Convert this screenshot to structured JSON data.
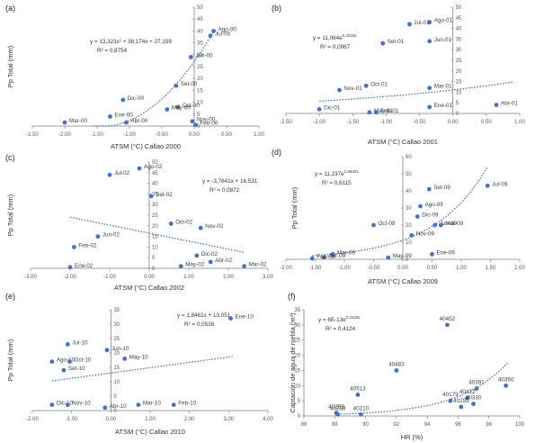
{
  "colors": {
    "point": "#4472c4",
    "trend": "#4472c4",
    "axis": "#7f7f7f"
  },
  "chart_data": [
    {
      "id": "a",
      "panel_label": "(a)",
      "type": "scatter",
      "xlabel": "ATSM (°C) Callao 2000",
      "ylabel": "Pp Total (mm)",
      "xlim": [
        -2.5,
        1.0
      ],
      "ylim": [
        0,
        50
      ],
      "xticks": [
        "-2.50",
        "-2.00",
        "-1.50",
        "-1.00",
        "-0.50",
        "0.00",
        "0.50",
        "1.00"
      ],
      "yticks": [
        "0",
        "5",
        "10",
        "15",
        "20",
        "25",
        "30",
        "35",
        "40",
        "45",
        "50"
      ],
      "points": [
        {
          "x": 0.3,
          "y": 40,
          "label": "Ago-00"
        },
        {
          "x": 0.25,
          "y": 38,
          "label": "Jul-00"
        },
        {
          "x": -0.05,
          "y": 29,
          "label": "Jun-00"
        },
        {
          "x": -0.28,
          "y": 17,
          "label": "Set-00"
        },
        {
          "x": -1.1,
          "y": 11,
          "label": "Dic-00"
        },
        {
          "x": -0.25,
          "y": 8,
          "label": "Oct-00"
        },
        {
          "x": -0.42,
          "y": 7,
          "label": "May-00"
        },
        {
          "x": -1.3,
          "y": 4,
          "label": "Ene-00"
        },
        {
          "x": -1.05,
          "y": 1.5,
          "label": "Abr-00"
        },
        {
          "x": -2.0,
          "y": 1.5,
          "label": "Mar-00"
        },
        {
          "x": -0.03,
          "y": 2,
          "label": "Nov-00"
        },
        {
          "x": 0.02,
          "y": 0.5,
          "label": "Feb-00"
        }
      ],
      "trend": {
        "kind": "poly2",
        "coef": [
          13.323,
          38.174,
          27.159
        ],
        "xrange": [
          -1.55,
          0.3
        ]
      },
      "equation": "y = 13,323x² + 38,174x + 27,159",
      "r2": "R² = 0,8754"
    },
    {
      "id": "b",
      "panel_label": "(b)",
      "type": "scatter",
      "xlabel": "ATSM (°C) Callao 2001",
      "ylabel": "",
      "xlim": [
        -2.5,
        1.0
      ],
      "ylim": [
        0,
        50
      ],
      "xticks": [
        "-2.50",
        "-2.00",
        "-1.50",
        "-1.00",
        "-0.50",
        "0.00",
        "0.50",
        "1.00"
      ],
      "yticks": [
        "0",
        "5",
        "10",
        "15",
        "20",
        "25",
        "30",
        "35",
        "40",
        "45",
        "50"
      ],
      "points": [
        {
          "x": -0.35,
          "y": 43,
          "label": "Ago-01"
        },
        {
          "x": -0.65,
          "y": 42,
          "label": "Jul-01"
        },
        {
          "x": -0.35,
          "y": 34,
          "label": "Jun-01"
        },
        {
          "x": -1.05,
          "y": 33,
          "label": "Set-01"
        },
        {
          "x": -1.3,
          "y": 13,
          "label": "Oct-01"
        },
        {
          "x": -1.7,
          "y": 11,
          "label": "Nov-01"
        },
        {
          "x": -0.35,
          "y": 12,
          "label": "Mar-01"
        },
        {
          "x": -0.35,
          "y": 3,
          "label": "Ene-01"
        },
        {
          "x": 0.65,
          "y": 4,
          "label": "Abr-01"
        },
        {
          "x": -2.0,
          "y": 2,
          "label": "Dic-01"
        },
        {
          "x": -1.25,
          "y": 0.5,
          "label": "May-01"
        },
        {
          "x": -1.15,
          "y": 0.5,
          "label": "Feb-01"
        }
      ],
      "trend": {
        "kind": "exp",
        "a": 11.064,
        "b": 0.3233,
        "xrange": [
          -2.0,
          0.9
        ]
      },
      "equation": "y = 11,064e",
      "eq_sup": "0,3233x",
      "r2": "R² = 0,0967"
    },
    {
      "id": "c",
      "panel_label": "(c)",
      "type": "scatter",
      "xlabel": "ATSM (°C) Callao 2002",
      "ylabel": "Pp Total (mm)",
      "xlim": [
        -3.0,
        3.0
      ],
      "ylim": [
        0,
        50
      ],
      "xticks": [
        "-3.00",
        "-2.00",
        "-1.00",
        "0.00",
        "1.00",
        "2.00",
        "3.00"
      ],
      "yticks": [
        "0",
        "5",
        "10",
        "15",
        "20",
        "25",
        "30",
        "35",
        "40",
        "45",
        "50"
      ],
      "points": [
        {
          "x": -0.25,
          "y": 47,
          "label": "Ago-02"
        },
        {
          "x": -1.0,
          "y": 44,
          "label": "Jul-02"
        },
        {
          "x": 0.05,
          "y": 34,
          "label": "Set-02"
        },
        {
          "x": 0.55,
          "y": 21,
          "label": "Oct-02"
        },
        {
          "x": 1.3,
          "y": 19,
          "label": "Nov-02"
        },
        {
          "x": -1.3,
          "y": 15,
          "label": "Jun-02"
        },
        {
          "x": -1.9,
          "y": 10,
          "label": "Feb-02"
        },
        {
          "x": 1.2,
          "y": 6,
          "label": "Dic-02"
        },
        {
          "x": 1.55,
          "y": 3,
          "label": "Abr-02"
        },
        {
          "x": 0.8,
          "y": 1,
          "label": "May-02"
        },
        {
          "x": 2.4,
          "y": 1,
          "label": "Mar-02"
        },
        {
          "x": -2.0,
          "y": 0.5,
          "label": "Ene-02"
        }
      ],
      "trend": {
        "kind": "linear",
        "m": -3.7641,
        "c": 16.531,
        "xrange": [
          -2.0,
          2.4
        ]
      },
      "equation": "y = -3,7641x + 16,531",
      "r2": "R² = 0,0872"
    },
    {
      "id": "d",
      "panel_label": "(d)",
      "type": "scatter",
      "xlabel": "ATSM (°C) Callao 2009",
      "ylabel": "Pp Total (mm)",
      "xlim": [
        -2.0,
        2.0
      ],
      "ylim": [
        0,
        60
      ],
      "xticks": [
        "-2.00",
        "-1.50",
        "-1.00",
        "-0.50",
        "0.00",
        "0.50",
        "1.00",
        "1.50",
        "2.00"
      ],
      "yticks": [
        "0",
        "10",
        "20",
        "30",
        "40",
        "50",
        "60"
      ],
      "points": [
        {
          "x": 1.45,
          "y": 43,
          "label": "Jul-09"
        },
        {
          "x": 0.45,
          "y": 41,
          "label": "Set-09"
        },
        {
          "x": 0.3,
          "y": 31,
          "label": "Ago-09"
        },
        {
          "x": 0.25,
          "y": 25,
          "label": "Dic-09"
        },
        {
          "x": -0.5,
          "y": 20,
          "label": "Oct-09"
        },
        {
          "x": 0.55,
          "y": 20,
          "label": "Jun-09"
        },
        {
          "x": 0.65,
          "y": 20,
          "label": "Mar-09"
        },
        {
          "x": 0.15,
          "y": 14,
          "label": "Nov-09"
        },
        {
          "x": -1.2,
          "y": 3,
          "label": "Mar-09"
        },
        {
          "x": 0.5,
          "y": 3,
          "label": "Ene-09"
        },
        {
          "x": -0.25,
          "y": 1,
          "label": "May-09"
        },
        {
          "x": -1.35,
          "y": 1,
          "label": "Abr-09"
        },
        {
          "x": -1.55,
          "y": 0.5,
          "label": "Feb-09"
        }
      ],
      "trend": {
        "kind": "exp",
        "a": 11.237,
        "b": 1.0842,
        "xrange": [
          -1.55,
          1.45
        ]
      },
      "equation": "y = 11,237e",
      "eq_sup": "1,0842x",
      "r2": "R² = 0,6115"
    },
    {
      "id": "e",
      "panel_label": "(e)",
      "type": "scatter",
      "xlabel": "ATSM (°C) Callao 2010",
      "ylabel": "Pp Total (mm)",
      "xlim": [
        -2.0,
        4.0
      ],
      "ylim": [
        0,
        35
      ],
      "xticks": [
        "-2.00",
        "-1.00",
        "0.00",
        "1.00",
        "2.00",
        "3.00",
        "4.00"
      ],
      "yticks": [
        "0",
        "5",
        "10",
        "15",
        "20",
        "25",
        "30",
        "35"
      ],
      "points": [
        {
          "x": 3.05,
          "y": 32,
          "label": "Ene-10"
        },
        {
          "x": -1.1,
          "y": 23,
          "label": "Jul-10"
        },
        {
          "x": -0.1,
          "y": 21,
          "label": "Jun-10"
        },
        {
          "x": 0.35,
          "y": 18,
          "label": "May-10"
        },
        {
          "x": -1.5,
          "y": 17,
          "label": "Ago-10"
        },
        {
          "x": -1.05,
          "y": 17,
          "label": "Oct-10"
        },
        {
          "x": -1.2,
          "y": 14,
          "label": "Set-10"
        },
        {
          "x": -1.5,
          "y": 2,
          "label": "Dic-10"
        },
        {
          "x": -1.1,
          "y": 2,
          "label": "Nov-10"
        },
        {
          "x": -0.15,
          "y": 1,
          "label": "Abr-10"
        },
        {
          "x": 0.7,
          "y": 2,
          "label": "Mar-10"
        },
        {
          "x": 1.6,
          "y": 2,
          "label": "Feb-10"
        }
      ],
      "trend": {
        "kind": "linear",
        "m": 1.8461,
        "c": 13.051,
        "xrange": [
          -1.5,
          3.1
        ]
      },
      "equation": "y = 1,8461x + 13,051",
      "r2": "R² = 0,0538"
    },
    {
      "id": "f",
      "panel_label": "(f)",
      "type": "scatter",
      "xlabel": "HR (%)",
      "ylabel": "Captación de agua de niebla (m³)",
      "xlim": [
        86,
        100
      ],
      "ylim": [
        0,
        35
      ],
      "xticks": [
        "86",
        "88",
        "90",
        "92",
        "94",
        "96",
        "98",
        "100"
      ],
      "yticks": [
        "0",
        "5",
        "10",
        "15",
        "20",
        "25",
        "30",
        "35"
      ],
      "points": [
        {
          "x": 95.3,
          "y": 30,
          "label": "40452"
        },
        {
          "x": 92.0,
          "y": 15,
          "label": "40483"
        },
        {
          "x": 89.5,
          "y": 7,
          "label": "40513"
        },
        {
          "x": 99.1,
          "y": 10,
          "label": "40360"
        },
        {
          "x": 97.2,
          "y": 9,
          "label": "40391"
        },
        {
          "x": 96.6,
          "y": 6,
          "label": "40422"
        },
        {
          "x": 95.5,
          "y": 5,
          "label": "40179"
        },
        {
          "x": 97.0,
          "y": 4,
          "label": "40330"
        },
        {
          "x": 96.2,
          "y": 3,
          "label": "40299"
        },
        {
          "x": 88.1,
          "y": 1,
          "label": "40269"
        },
        {
          "x": 88.2,
          "y": 0.5,
          "label": "40238"
        },
        {
          "x": 89.7,
          "y": 0.5,
          "label": "40210"
        }
      ],
      "trend": {
        "kind": "exp",
        "a": 6e-13,
        "b": 0.3125,
        "xrange": [
          88.0,
          99.2
        ]
      },
      "equation": "y = 6E-13e",
      "eq_sup": "0,3125x",
      "r2": "R² = 0,4124"
    }
  ]
}
